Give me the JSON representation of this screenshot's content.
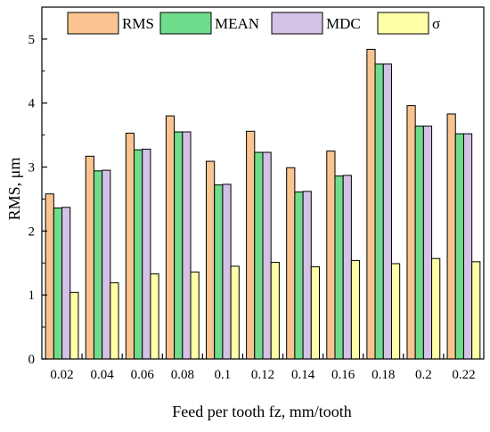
{
  "chart_data": {
    "type": "bar",
    "xlabel": "Feed per tooth fz, mm/tooth",
    "ylabel": "RMS, μm",
    "ylim": [
      0,
      5.5
    ],
    "yticks": [
      0,
      1,
      2,
      3,
      4,
      5
    ],
    "categories": [
      "0.02",
      "0.04",
      "0.06",
      "0.08",
      "0.1",
      "0.12",
      "0.14",
      "0.16",
      "0.18",
      "0.2",
      "0.22"
    ],
    "legend_position": "top",
    "series": [
      {
        "name": "RMS",
        "color": "#f9c48f",
        "values": [
          2.58,
          3.17,
          3.53,
          3.8,
          3.09,
          3.56,
          2.99,
          3.25,
          4.84,
          3.96,
          3.83
        ]
      },
      {
        "name": "MEAN",
        "color": "#6fdc8c",
        "values": [
          2.36,
          2.94,
          3.27,
          3.55,
          2.72,
          3.23,
          2.61,
          2.86,
          4.61,
          3.64,
          3.52
        ]
      },
      {
        "name": "MDC",
        "color": "#d5c1e5",
        "values": [
          2.37,
          2.95,
          3.28,
          3.55,
          2.73,
          3.23,
          2.62,
          2.87,
          4.61,
          3.64,
          3.52
        ]
      },
      {
        "name": "σ",
        "color": "#ffffa8",
        "values": [
          1.04,
          1.19,
          1.33,
          1.36,
          1.45,
          1.51,
          1.44,
          1.54,
          1.49,
          1.57,
          1.52
        ]
      }
    ]
  }
}
